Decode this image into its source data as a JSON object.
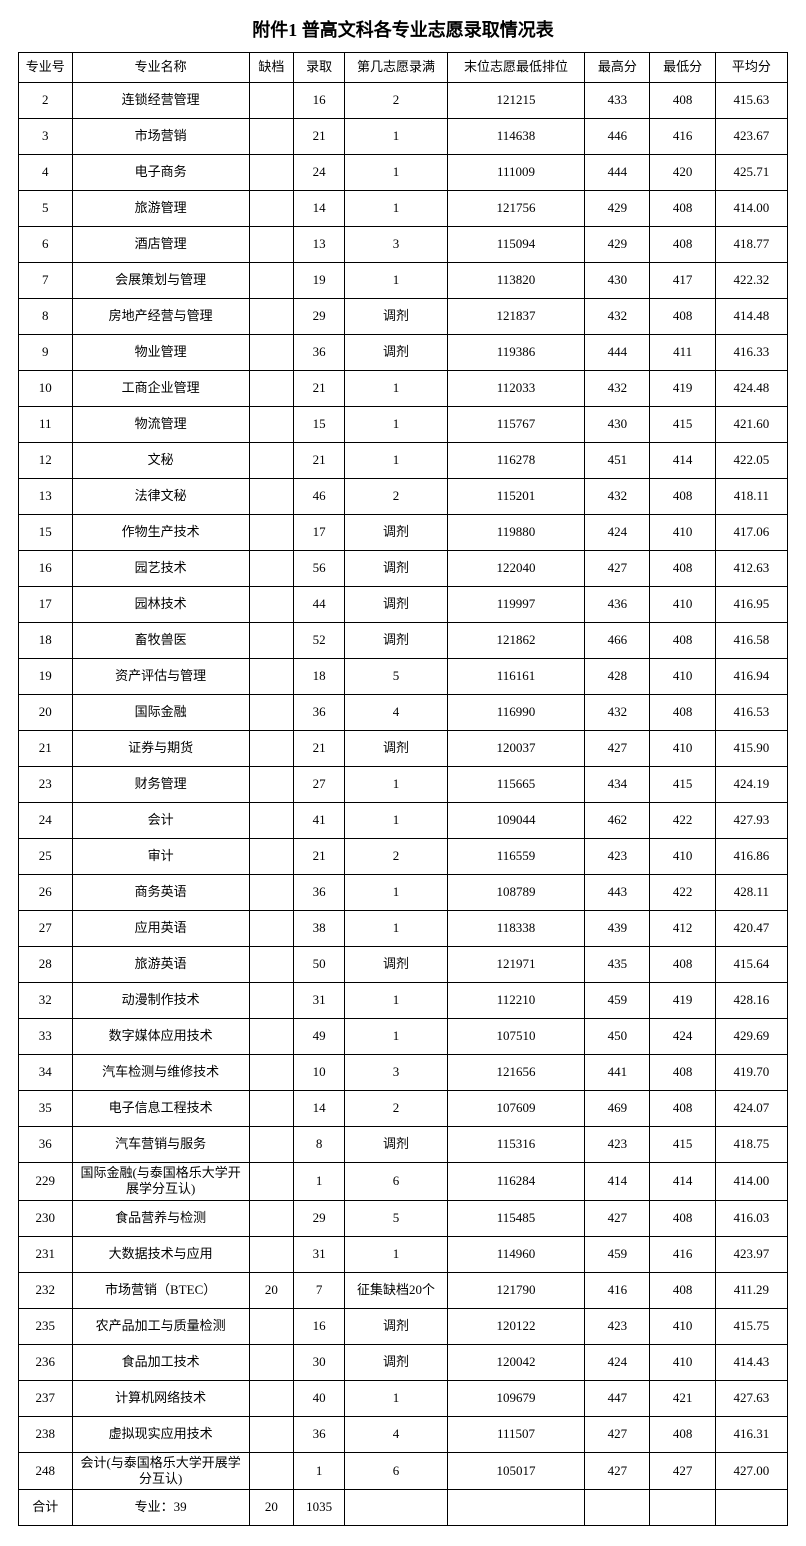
{
  "title": "附件1  普高文科各专业志愿录取情况表",
  "columns": [
    "专业号",
    "专业名称",
    "缺档",
    "录取",
    "第几志愿录满",
    "末位志愿最低排位",
    "最高分",
    "最低分",
    "平均分"
  ],
  "rows": [
    [
      "2",
      "连锁经营管理",
      "",
      "16",
      "2",
      "121215",
      "433",
      "408",
      "415.63"
    ],
    [
      "3",
      "市场营销",
      "",
      "21",
      "1",
      "114638",
      "446",
      "416",
      "423.67"
    ],
    [
      "4",
      "电子商务",
      "",
      "24",
      "1",
      "111009",
      "444",
      "420",
      "425.71"
    ],
    [
      "5",
      "旅游管理",
      "",
      "14",
      "1",
      "121756",
      "429",
      "408",
      "414.00"
    ],
    [
      "6",
      "酒店管理",
      "",
      "13",
      "3",
      "115094",
      "429",
      "408",
      "418.77"
    ],
    [
      "7",
      "会展策划与管理",
      "",
      "19",
      "1",
      "113820",
      "430",
      "417",
      "422.32"
    ],
    [
      "8",
      "房地产经营与管理",
      "",
      "29",
      "调剂",
      "121837",
      "432",
      "408",
      "414.48"
    ],
    [
      "9",
      "物业管理",
      "",
      "36",
      "调剂",
      "119386",
      "444",
      "411",
      "416.33"
    ],
    [
      "10",
      "工商企业管理",
      "",
      "21",
      "1",
      "112033",
      "432",
      "419",
      "424.48"
    ],
    [
      "11",
      "物流管理",
      "",
      "15",
      "1",
      "115767",
      "430",
      "415",
      "421.60"
    ],
    [
      "12",
      "文秘",
      "",
      "21",
      "1",
      "116278",
      "451",
      "414",
      "422.05"
    ],
    [
      "13",
      "法律文秘",
      "",
      "46",
      "2",
      "115201",
      "432",
      "408",
      "418.11"
    ],
    [
      "15",
      "作物生产技术",
      "",
      "17",
      "调剂",
      "119880",
      "424",
      "410",
      "417.06"
    ],
    [
      "16",
      "园艺技术",
      "",
      "56",
      "调剂",
      "122040",
      "427",
      "408",
      "412.63"
    ],
    [
      "17",
      "园林技术",
      "",
      "44",
      "调剂",
      "119997",
      "436",
      "410",
      "416.95"
    ],
    [
      "18",
      "畜牧兽医",
      "",
      "52",
      "调剂",
      "121862",
      "466",
      "408",
      "416.58"
    ],
    [
      "19",
      "资产评估与管理",
      "",
      "18",
      "5",
      "116161",
      "428",
      "410",
      "416.94"
    ],
    [
      "20",
      "国际金融",
      "",
      "36",
      "4",
      "116990",
      "432",
      "408",
      "416.53"
    ],
    [
      "21",
      "证券与期货",
      "",
      "21",
      "调剂",
      "120037",
      "427",
      "410",
      "415.90"
    ],
    [
      "23",
      "财务管理",
      "",
      "27",
      "1",
      "115665",
      "434",
      "415",
      "424.19"
    ],
    [
      "24",
      "会计",
      "",
      "41",
      "1",
      "109044",
      "462",
      "422",
      "427.93"
    ],
    [
      "25",
      "审计",
      "",
      "21",
      "2",
      "116559",
      "423",
      "410",
      "416.86"
    ],
    [
      "26",
      "商务英语",
      "",
      "36",
      "1",
      "108789",
      "443",
      "422",
      "428.11"
    ],
    [
      "27",
      "应用英语",
      "",
      "38",
      "1",
      "118338",
      "439",
      "412",
      "420.47"
    ],
    [
      "28",
      "旅游英语",
      "",
      "50",
      "调剂",
      "121971",
      "435",
      "408",
      "415.64"
    ],
    [
      "32",
      "动漫制作技术",
      "",
      "31",
      "1",
      "112210",
      "459",
      "419",
      "428.16"
    ],
    [
      "33",
      "数字媒体应用技术",
      "",
      "49",
      "1",
      "107510",
      "450",
      "424",
      "429.69"
    ],
    [
      "34",
      "汽车检测与维修技术",
      "",
      "10",
      "3",
      "121656",
      "441",
      "408",
      "419.70"
    ],
    [
      "35",
      "电子信息工程技术",
      "",
      "14",
      "2",
      "107609",
      "469",
      "408",
      "424.07"
    ],
    [
      "36",
      "汽车营销与服务",
      "",
      "8",
      "调剂",
      "115316",
      "423",
      "415",
      "418.75"
    ],
    [
      "229",
      "国际金融(与泰国格乐大学开展学分互认)",
      "",
      "1",
      "6",
      "116284",
      "414",
      "414",
      "414.00"
    ],
    [
      "230",
      "食品营养与检测",
      "",
      "29",
      "5",
      "115485",
      "427",
      "408",
      "416.03"
    ],
    [
      "231",
      "大数据技术与应用",
      "",
      "31",
      "1",
      "114960",
      "459",
      "416",
      "423.97"
    ],
    [
      "232",
      "市场营销（BTEC）",
      "20",
      "7",
      "征集缺档20个",
      "121790",
      "416",
      "408",
      "411.29"
    ],
    [
      "235",
      "农产品加工与质量检测",
      "",
      "16",
      "调剂",
      "120122",
      "423",
      "410",
      "415.75"
    ],
    [
      "236",
      "食品加工技术",
      "",
      "30",
      "调剂",
      "120042",
      "424",
      "410",
      "414.43"
    ],
    [
      "237",
      "计算机网络技术",
      "",
      "40",
      "1",
      "109679",
      "447",
      "421",
      "427.63"
    ],
    [
      "238",
      "虚拟现实应用技术",
      "",
      "36",
      "4",
      "111507",
      "427",
      "408",
      "416.31"
    ],
    [
      "248",
      "会计(与泰国格乐大学开展学分互认)",
      "",
      "1",
      "6",
      "105017",
      "427",
      "427",
      "427.00"
    ],
    [
      "合计",
      "专业：39",
      "20",
      "1035",
      "",
      "",
      "",
      "",
      ""
    ]
  ],
  "wrap_rows": [
    30,
    38
  ],
  "col_classes": [
    "c0",
    "c1",
    "c2",
    "c3",
    "c4",
    "c5",
    "c6",
    "c7",
    "c8"
  ]
}
